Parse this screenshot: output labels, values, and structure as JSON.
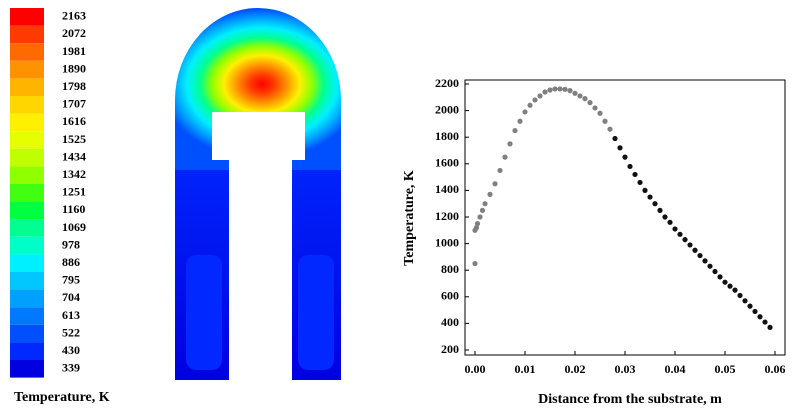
{
  "chart_data": [
    {
      "type": "colorbar",
      "label": "Temperature, K",
      "levels": [
        2163,
        2072,
        1981,
        1890,
        1798,
        1707,
        1616,
        1525,
        1434,
        1342,
        1251,
        1160,
        1069,
        978,
        886,
        795,
        704,
        613,
        522,
        430,
        339
      ],
      "colors": [
        "#ff0000",
        "#ff3a00",
        "#ff6a00",
        "#ff9200",
        "#ffb400",
        "#ffd600",
        "#fff000",
        "#e6ff00",
        "#c0ff00",
        "#90ff00",
        "#40ff10",
        "#00ff40",
        "#00ff90",
        "#00ffc8",
        "#00f0ff",
        "#00c8ff",
        "#00a0ff",
        "#0078ff",
        "#0050ff",
        "#0028ff",
        "#0000e0"
      ]
    },
    {
      "type": "scatter",
      "xlabel": "Distance from the substrate, m",
      "ylabel": "Temperature, K",
      "xlim": [
        -0.002,
        0.062
      ],
      "ylim": [
        200,
        2200
      ],
      "xticks": [
        {
          "value": 0,
          "label": "0.00"
        },
        {
          "value": 0.01,
          "label": "0.01"
        },
        {
          "value": 0.02,
          "label": "0.02"
        },
        {
          "value": 0.03,
          "label": "0.03"
        },
        {
          "value": 0.04,
          "label": "0.04"
        },
        {
          "value": 0.05,
          "label": "0.05"
        },
        {
          "value": 0.06,
          "label": "0.06"
        }
      ],
      "yticks": [
        200,
        400,
        600,
        800,
        1000,
        1200,
        1400,
        1600,
        1800,
        2000,
        2200
      ],
      "series": [
        {
          "color": "#808080",
          "x": [
            0,
            0,
            0.0003,
            0.0005,
            0.001,
            0.0015,
            0.002,
            0.003,
            0.004,
            0.005,
            0.006,
            0.007,
            0.008,
            0.009,
            0.01,
            0.011,
            0.012,
            0.013,
            0.014,
            0.015,
            0.016,
            0.017,
            0.018,
            0.019,
            0.02,
            0.021,
            0.022,
            0.023,
            0.024,
            0.025,
            0.026,
            0.027
          ],
          "values": [
            850,
            1100,
            1120,
            1150,
            1200,
            1250,
            1300,
            1370,
            1450,
            1550,
            1650,
            1750,
            1850,
            1920,
            1990,
            2040,
            2080,
            2110,
            2140,
            2155,
            2163,
            2163,
            2160,
            2150,
            2130,
            2110,
            2090,
            2060,
            2020,
            1980,
            1920,
            1860
          ]
        },
        {
          "color": "#111111",
          "x": [
            0.028,
            0.029,
            0.03,
            0.031,
            0.032,
            0.033,
            0.034,
            0.035,
            0.036,
            0.037,
            0.038,
            0.039,
            0.04,
            0.041,
            0.042,
            0.043,
            0.044,
            0.045,
            0.046,
            0.047,
            0.048,
            0.049,
            0.05,
            0.051,
            0.052,
            0.053,
            0.054,
            0.055,
            0.056,
            0.057,
            0.058,
            0.059
          ],
          "values": [
            1790,
            1720,
            1650,
            1580,
            1520,
            1460,
            1400,
            1350,
            1300,
            1250,
            1200,
            1160,
            1110,
            1070,
            1030,
            990,
            950,
            910,
            870,
            830,
            790,
            750,
            710,
            680,
            650,
            610,
            570,
            530,
            490,
            450,
            410,
            370
          ]
        }
      ]
    }
  ]
}
